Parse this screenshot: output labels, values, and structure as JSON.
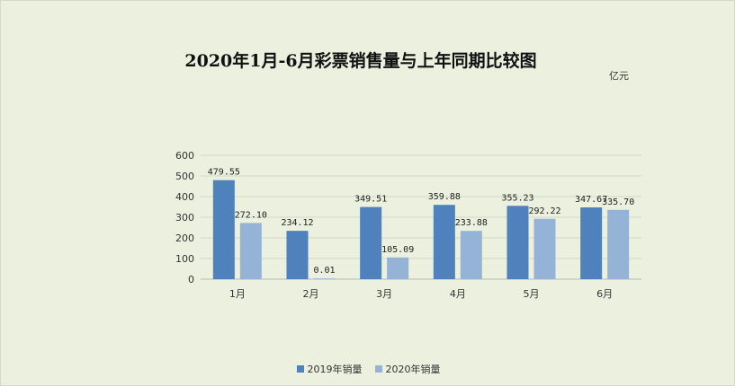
{
  "chart_data": {
    "type": "bar",
    "title": "2020年1月-6月彩票销售量与上年同期比较图",
    "unit": "亿元",
    "categories": [
      "1月",
      "2月",
      "3月",
      "4月",
      "5月",
      "6月"
    ],
    "ylim": [
      0,
      600
    ],
    "yticks": [
      0,
      100,
      200,
      300,
      400,
      500,
      600
    ],
    "grid": true,
    "legend_position": "bottom",
    "series": [
      {
        "name": "2019年销量",
        "color": "#4f81bd",
        "values": [
          479.55,
          234.12,
          349.51,
          359.88,
          355.23,
          347.67
        ],
        "labels": [
          "479.55",
          "234.12",
          "349.51",
          "359.88",
          "355.23",
          "347.67"
        ]
      },
      {
        "name": "2020年销量",
        "color": "#95b3d7",
        "values": [
          272.1,
          0.01,
          105.09,
          233.88,
          292.22,
          335.7
        ],
        "labels": [
          "272.10",
          "0.01",
          "105.09",
          "233.88",
          "292.22",
          "335.70"
        ]
      }
    ]
  }
}
